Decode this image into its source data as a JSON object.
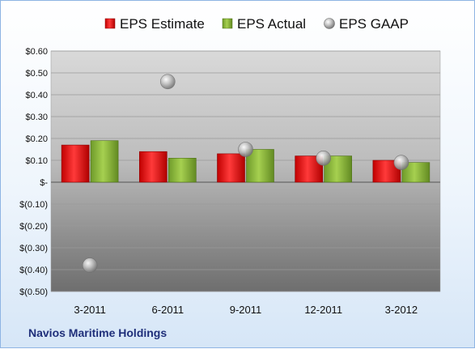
{
  "chart_data": {
    "type": "bar",
    "categories": [
      "3-2011",
      "6-2011",
      "9-2011",
      "12-2011",
      "3-2012"
    ],
    "series": [
      {
        "name": "EPS Estimate",
        "kind": "bar",
        "color": "#e8202a",
        "values": [
          0.17,
          0.14,
          0.13,
          0.12,
          0.1
        ]
      },
      {
        "name": "EPS Actual",
        "kind": "bar",
        "color": "#8fba3c",
        "values": [
          0.19,
          0.11,
          0.15,
          0.12,
          0.09
        ]
      },
      {
        "name": "EPS GAAP",
        "kind": "scatter",
        "color": "#b0b0b0",
        "values": [
          -0.38,
          0.46,
          0.15,
          0.11,
          0.09
        ]
      }
    ],
    "ylim": [
      -0.5,
      0.6
    ],
    "yticks": [
      {
        "value": 0.6,
        "label": "$0.60"
      },
      {
        "value": 0.5,
        "label": "$0.50"
      },
      {
        "value": 0.4,
        "label": "$0.40"
      },
      {
        "value": 0.3,
        "label": "$0.30"
      },
      {
        "value": 0.2,
        "label": "$0.20"
      },
      {
        "value": 0.1,
        "label": "$0.10"
      },
      {
        "value": 0.0,
        "label": "$-"
      },
      {
        "value": -0.1,
        "label": "$(0.10)"
      },
      {
        "value": -0.2,
        "label": "$(0.20)"
      },
      {
        "value": -0.3,
        "label": "$(0.30)"
      },
      {
        "value": -0.4,
        "label": "$(0.40)"
      },
      {
        "value": -0.5,
        "label": "$(0.50)"
      }
    ],
    "grid": true,
    "legend_position": "top"
  },
  "footer": {
    "company": "Navios Maritime Holdings"
  }
}
